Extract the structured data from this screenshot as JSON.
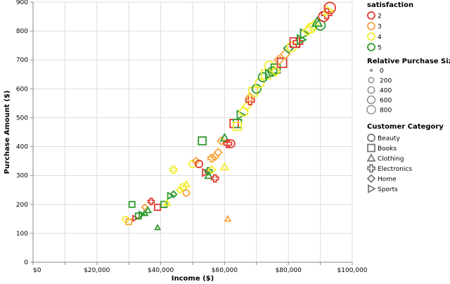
{
  "chart_data": {
    "type": "scatter",
    "xlabel": "Income ($)",
    "ylabel": "Purchase Amount ($)",
    "xlim": [
      0,
      100000
    ],
    "ylim": [
      0,
      900
    ],
    "x_ticks": [
      0,
      20000,
      40000,
      60000,
      80000,
      100000
    ],
    "x_tick_labels": [
      "$0",
      "$20,000",
      "$40,000",
      "$60,000",
      "$80,000",
      "$100,000"
    ],
    "y_ticks": [
      0,
      100,
      200,
      300,
      400,
      500,
      600,
      700,
      800,
      900
    ],
    "y_tick_labels": [
      "0",
      "100",
      "200",
      "300",
      "400",
      "500",
      "600",
      "700",
      "800",
      "900"
    ],
    "grid": true,
    "legend_placement": "right",
    "color_legend": {
      "title": "satisfaction",
      "entries": [
        {
          "label": "2",
          "color": "#e03a2f"
        },
        {
          "label": "3",
          "color": "#f5a43a"
        },
        {
          "label": "4",
          "color": "#f2ee2e"
        },
        {
          "label": "5",
          "color": "#2e9a2e"
        }
      ]
    },
    "size_legend": {
      "title": "Relative Purchase Size",
      "entries": [
        {
          "label": "0",
          "value": 0
        },
        {
          "label": "200",
          "value": 200
        },
        {
          "label": "400",
          "value": 400
        },
        {
          "label": "600",
          "value": 600
        },
        {
          "label": "800",
          "value": 800
        }
      ]
    },
    "shape_legend": {
      "title": "Customer Category",
      "entries": [
        {
          "label": "Beauty",
          "shape": "circle"
        },
        {
          "label": "Books",
          "shape": "square"
        },
        {
          "label": "Clothing",
          "shape": "triangle-up"
        },
        {
          "label": "Electronics",
          "shape": "cross"
        },
        {
          "label": "Home",
          "shape": "diamond"
        },
        {
          "label": "Sports",
          "shape": "triangle-right"
        }
      ]
    },
    "points": [
      {
        "x": 29000,
        "y": 148,
        "sat": 4,
        "cat": "Beauty",
        "size": 60
      },
      {
        "x": 30000,
        "y": 140,
        "sat": 3,
        "cat": "Books",
        "size": 40
      },
      {
        "x": 31000,
        "y": 200,
        "sat": 5,
        "cat": "Books",
        "size": 50
      },
      {
        "x": 32000,
        "y": 152,
        "sat": 2,
        "cat": "Sports",
        "size": 40
      },
      {
        "x": 33000,
        "y": 160,
        "sat": 5,
        "cat": "Books",
        "size": 50
      },
      {
        "x": 34000,
        "y": 165,
        "sat": 5,
        "cat": "Sports",
        "size": 60
      },
      {
        "x": 35000,
        "y": 170,
        "sat": 5,
        "cat": "Clothing",
        "size": 60
      },
      {
        "x": 35000,
        "y": 190,
        "sat": 3,
        "cat": "Home",
        "size": 60
      },
      {
        "x": 36000,
        "y": 180,
        "sat": 5,
        "cat": "Clothing",
        "size": 60
      },
      {
        "x": 37000,
        "y": 210,
        "sat": 2,
        "cat": "Electronics",
        "size": 70
      },
      {
        "x": 39000,
        "y": 120,
        "sat": 5,
        "cat": "Clothing",
        "size": 20
      },
      {
        "x": 39000,
        "y": 190,
        "sat": 2,
        "cat": "Books",
        "size": 60
      },
      {
        "x": 41000,
        "y": 200,
        "sat": 5,
        "cat": "Books",
        "size": 60
      },
      {
        "x": 42000,
        "y": 205,
        "sat": 4,
        "cat": "Clothing",
        "size": 70
      },
      {
        "x": 43000,
        "y": 230,
        "sat": 5,
        "cat": "Sports",
        "size": 80
      },
      {
        "x": 44000,
        "y": 235,
        "sat": 5,
        "cat": "Home",
        "size": 80
      },
      {
        "x": 44000,
        "y": 320,
        "sat": 4,
        "cat": "Electronics",
        "size": 120
      },
      {
        "x": 46000,
        "y": 250,
        "sat": 4,
        "cat": "Home",
        "size": 90
      },
      {
        "x": 47000,
        "y": 260,
        "sat": 4,
        "cat": "Beauty",
        "size": 100
      },
      {
        "x": 48000,
        "y": 270,
        "sat": 4,
        "cat": "Clothing",
        "size": 100
      },
      {
        "x": 48000,
        "y": 240,
        "sat": 3,
        "cat": "Beauty",
        "size": 80
      },
      {
        "x": 50000,
        "y": 340,
        "sat": 4,
        "cat": "Beauty",
        "size": 130
      },
      {
        "x": 51000,
        "y": 350,
        "sat": 3,
        "cat": "Home",
        "size": 140
      },
      {
        "x": 52000,
        "y": 340,
        "sat": 2,
        "cat": "Beauty",
        "size": 140
      },
      {
        "x": 53000,
        "y": 420,
        "sat": 5,
        "cat": "Books",
        "size": 180
      },
      {
        "x": 54000,
        "y": 310,
        "sat": 2,
        "cat": "Sports",
        "size": 130
      },
      {
        "x": 55000,
        "y": 300,
        "sat": 5,
        "cat": "Clothing",
        "size": 120
      },
      {
        "x": 55000,
        "y": 315,
        "sat": 5,
        "cat": "Electronics",
        "size": 130
      },
      {
        "x": 56000,
        "y": 320,
        "sat": 4,
        "cat": "Home",
        "size": 130
      },
      {
        "x": 56000,
        "y": 360,
        "sat": 3,
        "cat": "Electronics",
        "size": 150
      },
      {
        "x": 57000,
        "y": 290,
        "sat": 2,
        "cat": "Electronics",
        "size": 120
      },
      {
        "x": 57000,
        "y": 365,
        "sat": 3,
        "cat": "Home",
        "size": 150
      },
      {
        "x": 58000,
        "y": 380,
        "sat": 3,
        "cat": "Home",
        "size": 160
      },
      {
        "x": 59000,
        "y": 420,
        "sat": 3,
        "cat": "Home",
        "size": 180
      },
      {
        "x": 60000,
        "y": 430,
        "sat": 5,
        "cat": "Clothing",
        "size": 190
      },
      {
        "x": 60000,
        "y": 330,
        "sat": 4,
        "cat": "Clothing",
        "size": 140
      },
      {
        "x": 61000,
        "y": 150,
        "sat": 3,
        "cat": "Clothing",
        "size": 40
      },
      {
        "x": 61000,
        "y": 410,
        "sat": 2,
        "cat": "Electronics",
        "size": 180
      },
      {
        "x": 62000,
        "y": 410,
        "sat": 2,
        "cat": "Beauty",
        "size": 180
      },
      {
        "x": 63000,
        "y": 480,
        "sat": 2,
        "cat": "Books",
        "size": 220
      },
      {
        "x": 64000,
        "y": 480,
        "sat": 5,
        "cat": "Books",
        "size": 220
      },
      {
        "x": 64000,
        "y": 470,
        "sat": 4,
        "cat": "Books",
        "size": 210
      },
      {
        "x": 65000,
        "y": 510,
        "sat": 5,
        "cat": "Sports",
        "size": 230
      },
      {
        "x": 66000,
        "y": 520,
        "sat": 4,
        "cat": "Beauty",
        "size": 240
      },
      {
        "x": 67000,
        "y": 540,
        "sat": 4,
        "cat": "Home",
        "size": 250
      },
      {
        "x": 68000,
        "y": 560,
        "sat": 2,
        "cat": "Electronics",
        "size": 260
      },
      {
        "x": 68000,
        "y": 570,
        "sat": 3,
        "cat": "Home",
        "size": 260
      },
      {
        "x": 69000,
        "y": 590,
        "sat": 4,
        "cat": "Books",
        "size": 270
      },
      {
        "x": 70000,
        "y": 600,
        "sat": 5,
        "cat": "Beauty",
        "size": 280
      },
      {
        "x": 71000,
        "y": 620,
        "sat": 4,
        "cat": "Beauty",
        "size": 290
      },
      {
        "x": 72000,
        "y": 640,
        "sat": 5,
        "cat": "Beauty",
        "size": 300
      },
      {
        "x": 73000,
        "y": 650,
        "sat": 4,
        "cat": "Books",
        "size": 300
      },
      {
        "x": 74000,
        "y": 680,
        "sat": 4,
        "cat": "Beauty",
        "size": 310
      },
      {
        "x": 74000,
        "y": 650,
        "sat": 5,
        "cat": "Sports",
        "size": 300
      },
      {
        "x": 75000,
        "y": 660,
        "sat": 5,
        "cat": "Beauty",
        "size": 310
      },
      {
        "x": 76000,
        "y": 670,
        "sat": 5,
        "cat": "Books",
        "size": 310
      },
      {
        "x": 76000,
        "y": 660,
        "sat": 4,
        "cat": "Home",
        "size": 310
      },
      {
        "x": 77000,
        "y": 700,
        "sat": 3,
        "cat": "Home",
        "size": 330
      },
      {
        "x": 78000,
        "y": 690,
        "sat": 2,
        "cat": "Books",
        "size": 330
      },
      {
        "x": 79000,
        "y": 720,
        "sat": 3,
        "cat": "Home",
        "size": 340
      },
      {
        "x": 80000,
        "y": 740,
        "sat": 5,
        "cat": "Home",
        "size": 350
      },
      {
        "x": 81000,
        "y": 745,
        "sat": 4,
        "cat": "Beauty",
        "size": 350
      },
      {
        "x": 82000,
        "y": 760,
        "sat": 2,
        "cat": "Books",
        "size": 360
      },
      {
        "x": 83000,
        "y": 760,
        "sat": 2,
        "cat": "Electronics",
        "size": 360
      },
      {
        "x": 84000,
        "y": 770,
        "sat": 5,
        "cat": "Sports",
        "size": 370
      },
      {
        "x": 85000,
        "y": 790,
        "sat": 5,
        "cat": "Sports",
        "size": 380
      },
      {
        "x": 86000,
        "y": 800,
        "sat": 4,
        "cat": "Home",
        "size": 380
      },
      {
        "x": 87000,
        "y": 810,
        "sat": 4,
        "cat": "Beauty",
        "size": 390
      },
      {
        "x": 88000,
        "y": 820,
        "sat": 4,
        "cat": "Home",
        "size": 390
      },
      {
        "x": 89000,
        "y": 830,
        "sat": 5,
        "cat": "Clothing",
        "size": 400
      },
      {
        "x": 90000,
        "y": 820,
        "sat": 5,
        "cat": "Beauty",
        "size": 400
      },
      {
        "x": 91000,
        "y": 850,
        "sat": 2,
        "cat": "Beauty",
        "size": 420
      },
      {
        "x": 92000,
        "y": 860,
        "sat": 2,
        "cat": "Electronics",
        "size": 430
      },
      {
        "x": 92500,
        "y": 870,
        "sat": 4,
        "cat": "Sports",
        "size": 440
      },
      {
        "x": 93000,
        "y": 880,
        "sat": 2,
        "cat": "Beauty",
        "size": 600
      }
    ]
  }
}
